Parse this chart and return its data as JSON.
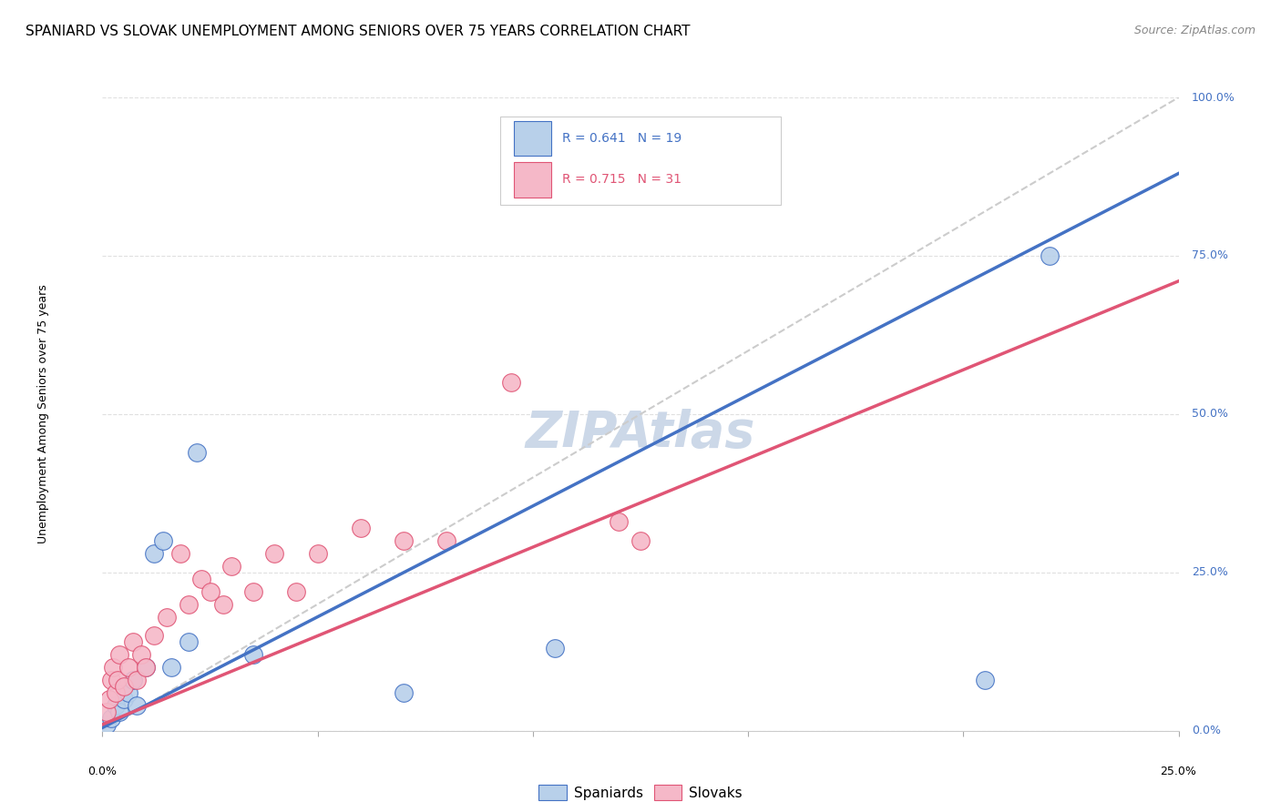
{
  "title": "SPANIARD VS SLOVAK UNEMPLOYMENT AMONG SENIORS OVER 75 YEARS CORRELATION CHART",
  "source": "Source: ZipAtlas.com",
  "ylabel": "Unemployment Among Seniors over 75 years",
  "ytick_labels": [
    "0.0%",
    "25.0%",
    "50.0%",
    "75.0%",
    "100.0%"
  ],
  "ytick_values": [
    0,
    25,
    50,
    75,
    100
  ],
  "xlim": [
    0,
    25
  ],
  "ylim": [
    0,
    100
  ],
  "watermark": "ZIPAtlas",
  "legend_blue": {
    "R": 0.641,
    "N": 19,
    "label": "Spaniards"
  },
  "legend_pink": {
    "R": 0.715,
    "N": 31,
    "label": "Slovaks"
  },
  "spaniards_color": "#b8d0ea",
  "slovaks_color": "#f5b8c8",
  "reg_blue_color": "#4472c4",
  "reg_pink_color": "#e05575",
  "diag_color": "#cccccc",
  "spaniards_x": [
    0.1,
    0.2,
    0.3,
    0.4,
    0.5,
    0.6,
    0.7,
    0.8,
    1.0,
    1.2,
    1.4,
    1.6,
    2.0,
    2.2,
    3.5,
    7.0,
    10.5,
    20.5,
    22.0
  ],
  "spaniards_y": [
    1,
    2,
    4,
    3,
    5,
    6,
    8,
    4,
    10,
    28,
    30,
    10,
    14,
    44,
    12,
    6,
    13,
    8,
    75
  ],
  "slovaks_x": [
    0.1,
    0.15,
    0.2,
    0.25,
    0.3,
    0.35,
    0.4,
    0.5,
    0.6,
    0.7,
    0.8,
    0.9,
    1.0,
    1.2,
    1.5,
    1.8,
    2.0,
    2.3,
    2.5,
    2.8,
    3.0,
    3.5,
    4.0,
    4.5,
    5.0,
    6.0,
    7.0,
    8.0,
    9.5,
    12.0,
    12.5
  ],
  "slovaks_y": [
    3,
    5,
    8,
    10,
    6,
    8,
    12,
    7,
    10,
    14,
    8,
    12,
    10,
    15,
    18,
    28,
    20,
    24,
    22,
    20,
    26,
    22,
    28,
    22,
    28,
    32,
    30,
    30,
    55,
    33,
    30
  ],
  "reg_blue_slope": 3.5,
  "reg_blue_intercept": 0.5,
  "reg_pink_slope": 2.8,
  "reg_pink_intercept": 1.0,
  "title_fontsize": 11,
  "source_fontsize": 9,
  "axis_label_fontsize": 9,
  "tick_fontsize": 9,
  "legend_fontsize": 10,
  "watermark_fontsize": 40,
  "watermark_color": "#ccd8e8",
  "background_color": "#ffffff",
  "grid_color": "#e0e0e0"
}
